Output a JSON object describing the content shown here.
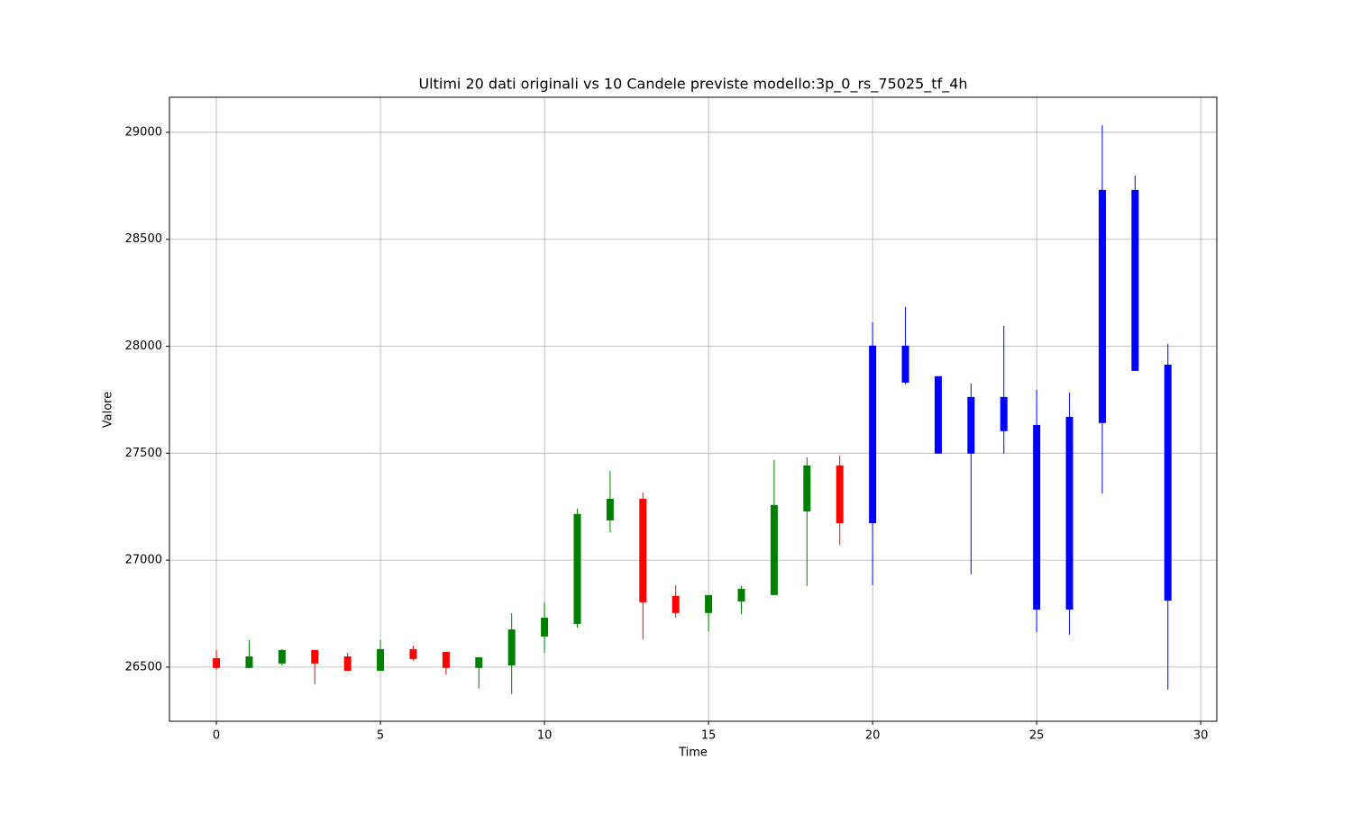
{
  "chart_data": {
    "type": "candlestick",
    "title": "Ultimi 20 dati originali vs 10 Candele previste modello:3p_0_rs_75025_tf_4h",
    "x_label": "Time",
    "y_label": "Valore",
    "xlim": [
      -1.43,
      30.49
    ],
    "ylim": [
      26247,
      29164
    ],
    "xticks": [
      0,
      5,
      10,
      15,
      20,
      25,
      30
    ],
    "yticks": [
      26500,
      27000,
      27500,
      28000,
      28500,
      29000
    ],
    "grid": true,
    "series": [
      {
        "up_color": "green",
        "down_color": "red",
        "x": [
          0,
          1,
          2,
          3,
          4,
          5,
          6,
          7,
          8,
          9,
          10,
          11,
          12,
          13,
          14,
          15,
          16,
          17,
          18,
          19
        ],
        "open": [
          26542,
          26496,
          26517,
          26580,
          26550,
          26483,
          26584,
          26571,
          26496,
          26508,
          26643,
          26702,
          27186,
          27287,
          26833,
          26753,
          26807,
          26837,
          27228,
          27443
        ],
        "high": [
          26580,
          26626,
          26584,
          26580,
          26567,
          26626,
          26600,
          26571,
          26546,
          26752,
          26803,
          27241,
          27418,
          27317,
          26883,
          26837,
          26879,
          27468,
          27481,
          27489
        ],
        "low": [
          26487,
          26496,
          26508,
          26420,
          26483,
          26483,
          26530,
          26466,
          26400,
          26374,
          26567,
          26685,
          27131,
          26630,
          26731,
          26668,
          26748,
          26837,
          26879,
          27072
        ],
        "close": [
          26496,
          26550,
          26580,
          26517,
          26483,
          26584,
          26538,
          26496,
          26546,
          26676,
          26731,
          27216,
          27287,
          26803,
          26753,
          26837,
          26866,
          27258,
          27443,
          27173
        ]
      },
      {
        "color": "blue",
        "x": [
          20,
          21,
          22,
          23,
          24,
          25,
          26,
          27,
          28,
          29
        ],
        "open": [
          27173,
          28003,
          27860,
          27498,
          27763,
          27632,
          26769,
          27641,
          28731,
          27914
        ],
        "high": [
          28112,
          28184,
          27860,
          27826,
          28095,
          27796,
          27784,
          29034,
          28798,
          28011
        ],
        "low": [
          26883,
          27822,
          27498,
          26934,
          27498,
          26664,
          26652,
          27312,
          27885,
          26395
        ],
        "close": [
          28003,
          27830,
          27498,
          27763,
          27603,
          26769,
          27670,
          28731,
          27885,
          26811
        ]
      }
    ]
  }
}
